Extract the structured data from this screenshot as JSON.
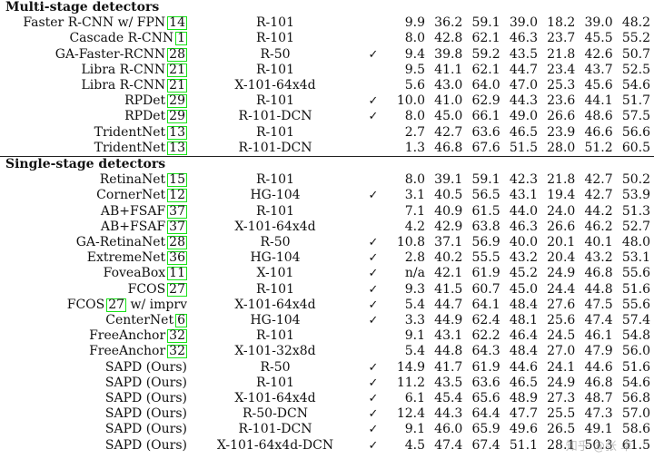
{
  "sections": [
    {
      "title": "Multi-stage detectors",
      "rows": [
        {
          "method": "Faster R-CNN w/ FPN",
          "cite": "14",
          "backbone": "R-101",
          "ms": "",
          "fps": "9.9",
          "ap": "36.2",
          "ap50": "59.1",
          "ap75": "39.0",
          "aps": "18.2",
          "apm": "39.0",
          "apl": "48.2"
        },
        {
          "method": "Cascade R-CNN",
          "cite": "1",
          "backbone": "R-101",
          "ms": "",
          "fps": "8.0",
          "ap": "42.8",
          "ap50": "62.1",
          "ap75": "46.3",
          "aps": "23.7",
          "apm": "45.5",
          "apl": "55.2"
        },
        {
          "method": "GA-Faster-RCNN",
          "cite": "28",
          "backbone": "R-50",
          "ms": "✓",
          "fps": "9.4",
          "ap": "39.8",
          "ap50": "59.2",
          "ap75": "43.5",
          "aps": "21.8",
          "apm": "42.6",
          "apl": "50.7"
        },
        {
          "method": "Libra R-CNN",
          "cite": "21",
          "backbone": "R-101",
          "ms": "",
          "fps": "9.5",
          "ap": "41.1",
          "ap50": "62.1",
          "ap75": "44.7",
          "aps": "23.4",
          "apm": "43.7",
          "apl": "52.5"
        },
        {
          "method": "Libra R-CNN",
          "cite": "21",
          "backbone": "X-101-64x4d",
          "ms": "",
          "fps": "5.6",
          "ap": "43.0",
          "ap50": "64.0",
          "ap75": "47.0",
          "aps": "25.3",
          "apm": "45.6",
          "apl": "54.6"
        },
        {
          "method": "RPDet",
          "cite": "29",
          "backbone": "R-101",
          "ms": "✓",
          "fps": "10.0",
          "ap": "41.0",
          "ap50": "62.9",
          "ap75": "44.3",
          "aps": "23.6",
          "apm": "44.1",
          "apl": "51.7"
        },
        {
          "method": "RPDet",
          "cite": "29",
          "backbone": "R-101-DCN",
          "ms": "✓",
          "fps": "8.0",
          "ap": "45.0",
          "ap50": "66.1",
          "ap75": "49.0",
          "aps": "26.6",
          "apm": "48.6",
          "apl": "57.5"
        },
        {
          "method": "TridentNet",
          "cite": "13",
          "backbone": "R-101",
          "ms": "",
          "fps": "2.7",
          "ap": "42.7",
          "ap50": "63.6",
          "ap75": "46.5",
          "aps": "23.9",
          "apm": "46.6",
          "apl": "56.6"
        },
        {
          "method": "TridentNet",
          "cite": "13",
          "backbone": "R-101-DCN",
          "ms": "",
          "fps": "1.3",
          "ap": "46.8",
          "ap50": "67.6",
          "ap75": "51.5",
          "aps": "28.0",
          "apm": "51.2",
          "apl": "60.5"
        }
      ]
    },
    {
      "title": "Single-stage detectors",
      "rows": [
        {
          "method": "RetinaNet",
          "cite": "15",
          "backbone": "R-101",
          "ms": "",
          "fps": "8.0",
          "ap": "39.1",
          "ap50": "59.1",
          "ap75": "42.3",
          "aps": "21.8",
          "apm": "42.7",
          "apl": "50.2"
        },
        {
          "method": "CornerNet",
          "cite": "12",
          "backbone": "HG-104",
          "ms": "✓",
          "fps": "3.1",
          "ap": "40.5",
          "ap50": "56.5",
          "ap75": "43.1",
          "aps": "19.4",
          "apm": "42.7",
          "apl": "53.9"
        },
        {
          "method": "AB+FSAF",
          "cite": "37",
          "backbone": "R-101",
          "ms": "",
          "fps": "7.1",
          "ap": "40.9",
          "ap50": "61.5",
          "ap75": "44.0",
          "aps": "24.0",
          "apm": "44.2",
          "apl": "51.3"
        },
        {
          "method": "AB+FSAF",
          "cite": "37",
          "backbone": "X-101-64x4d",
          "ms": "",
          "fps": "4.2",
          "ap": "42.9",
          "ap50": "63.8",
          "ap75": "46.3",
          "aps": "26.6",
          "apm": "46.2",
          "apl": "52.7"
        },
        {
          "method": "GA-RetinaNet",
          "cite": "28",
          "backbone": "R-50",
          "ms": "✓",
          "fps": "10.8",
          "ap": "37.1",
          "ap50": "56.9",
          "ap75": "40.0",
          "aps": "20.1",
          "apm": "40.1",
          "apl": "48.0"
        },
        {
          "method": "ExtremeNet",
          "cite": "36",
          "backbone": "HG-104",
          "ms": "✓",
          "fps": "2.8",
          "ap": "40.2",
          "ap50": "55.5",
          "ap75": "43.2",
          "aps": "20.4",
          "apm": "43.2",
          "apl": "53.1"
        },
        {
          "method": "FoveaBox",
          "cite": "11",
          "backbone": "X-101",
          "ms": "✓",
          "fps": "n/a",
          "ap": "42.1",
          "ap50": "61.9",
          "ap75": "45.2",
          "aps": "24.9",
          "apm": "46.8",
          "apl": "55.6"
        },
        {
          "method": "FCOS",
          "cite": "27",
          "backbone": "R-101",
          "ms": "✓",
          "fps": "9.3",
          "ap": "41.5",
          "ap50": "60.7",
          "ap75": "45.0",
          "aps": "24.4",
          "apm": "44.8",
          "apl": "51.6"
        },
        {
          "method": "FCOS",
          "cite": "27",
          "suffix": " w/ imprv",
          "backbone": "X-101-64x4d",
          "ms": "✓",
          "fps": "5.4",
          "ap": "44.7",
          "ap50": "64.1",
          "ap75": "48.4",
          "aps": "27.6",
          "apm": "47.5",
          "apl": "55.6"
        },
        {
          "method": "CenterNet",
          "cite": "6",
          "backbone": "HG-104",
          "ms": "✓",
          "fps": "3.3",
          "ap": "44.9",
          "ap50": "62.4",
          "ap75": "48.1",
          "aps": "25.6",
          "apm": "47.4",
          "apl": "57.4"
        },
        {
          "method": "FreeAnchor",
          "cite": "32",
          "backbone": "R-101",
          "ms": "",
          "fps": "9.1",
          "ap": "43.1",
          "ap50": "62.2",
          "ap75": "46.4",
          "aps": "24.5",
          "apm": "46.1",
          "apl": "54.8"
        },
        {
          "method": "FreeAnchor",
          "cite": "32",
          "backbone": "X-101-32x8d",
          "ms": "",
          "fps": "5.4",
          "ap": "44.8",
          "ap50": "64.3",
          "ap75": "48.4",
          "aps": "27.0",
          "apm": "47.9",
          "apl": "56.0"
        },
        {
          "method": "SAPD (Ours)",
          "cite": "",
          "backbone": "R-50",
          "ms": "✓",
          "fps": "14.9",
          "ap": "41.7",
          "ap50": "61.9",
          "ap75": "44.6",
          "aps": "24.1",
          "apm": "44.6",
          "apl": "51.6"
        },
        {
          "method": "SAPD (Ours)",
          "cite": "",
          "backbone": "R-101",
          "ms": "✓",
          "fps": "11.2",
          "ap": "43.5",
          "ap50": "63.6",
          "ap75": "46.5",
          "aps": "24.9",
          "apm": "46.8",
          "apl": "54.6"
        },
        {
          "method": "SAPD (Ours)",
          "cite": "",
          "backbone": "X-101-64x4d",
          "ms": "✓",
          "fps": "6.1",
          "ap": "45.4",
          "ap50": "65.6",
          "ap75": "48.9",
          "aps": "27.3",
          "apm": "48.7",
          "apl": "56.8"
        },
        {
          "method": "SAPD (Ours)",
          "cite": "",
          "backbone": "R-50-DCN",
          "ms": "✓",
          "fps": "12.4",
          "ap": "44.3",
          "ap50": "64.4",
          "ap75": "47.7",
          "aps": "25.5",
          "apm": "47.3",
          "apl": "57.0"
        },
        {
          "method": "SAPD (Ours)",
          "cite": "",
          "backbone": "R-101-DCN",
          "ms": "✓",
          "fps": "9.1",
          "ap": "46.0",
          "ap50": "65.9",
          "ap75": "49.6",
          "aps": "26.5",
          "apm": "49.1",
          "apl": "58.6"
        },
        {
          "method": "SAPD (Ours)",
          "cite": "",
          "backbone": "X-101-64x4d-DCN",
          "ms": "✓",
          "fps": "4.5",
          "ap": "47.4",
          "ap50": "67.4",
          "ap75": "51.1",
          "aps": "28.1",
          "apm": "50.3",
          "apl": "61.5"
        }
      ]
    }
  ],
  "watermark": "知乎 @张 卓"
}
